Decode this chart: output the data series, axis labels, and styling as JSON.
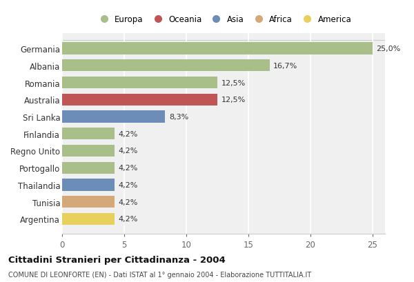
{
  "countries": [
    "Germania",
    "Albania",
    "Romania",
    "Australia",
    "Sri Lanka",
    "Finlandia",
    "Regno Unito",
    "Portogallo",
    "Thailandia",
    "Tunisia",
    "Argentina"
  ],
  "values": [
    25.0,
    16.7,
    12.5,
    12.5,
    8.3,
    4.2,
    4.2,
    4.2,
    4.2,
    4.2,
    4.2
  ],
  "labels": [
    "25,0%",
    "16,7%",
    "12,5%",
    "12,5%",
    "8,3%",
    "4,2%",
    "4,2%",
    "4,2%",
    "4,2%",
    "4,2%",
    "4,2%"
  ],
  "continents": [
    "Europa",
    "Europa",
    "Europa",
    "Oceania",
    "Asia",
    "Europa",
    "Europa",
    "Europa",
    "Asia",
    "Africa",
    "America"
  ],
  "continent_colors": {
    "Oceania": "#c05555",
    "Asia": "#6b8db8",
    "Africa": "#d4a878",
    "America": "#e8d060"
  },
  "continent_colors2": {
    "Europa": "#a8bf8a",
    "Oceania": "#c05555",
    "Asia": "#6b8db8",
    "Africa": "#d4a878",
    "America": "#e8cf5e"
  },
  "legend_order": [
    "Europa",
    "Oceania",
    "Asia",
    "Africa",
    "America"
  ],
  "bg_color": "#ffffff",
  "plot_bg": "#f8f8f8",
  "grid_color": "#ffffff",
  "title": "Cittadini Stranieri per Cittadinanza - 2004",
  "subtitle": "COMUNE DI LEONFORTE (EN) - Dati ISTAT al 1° gennaio 2004 - Elaborazione TUTTITALIA.IT",
  "xlim": [
    0,
    26
  ],
  "xticks": [
    0,
    5,
    10,
    15,
    20,
    25
  ]
}
